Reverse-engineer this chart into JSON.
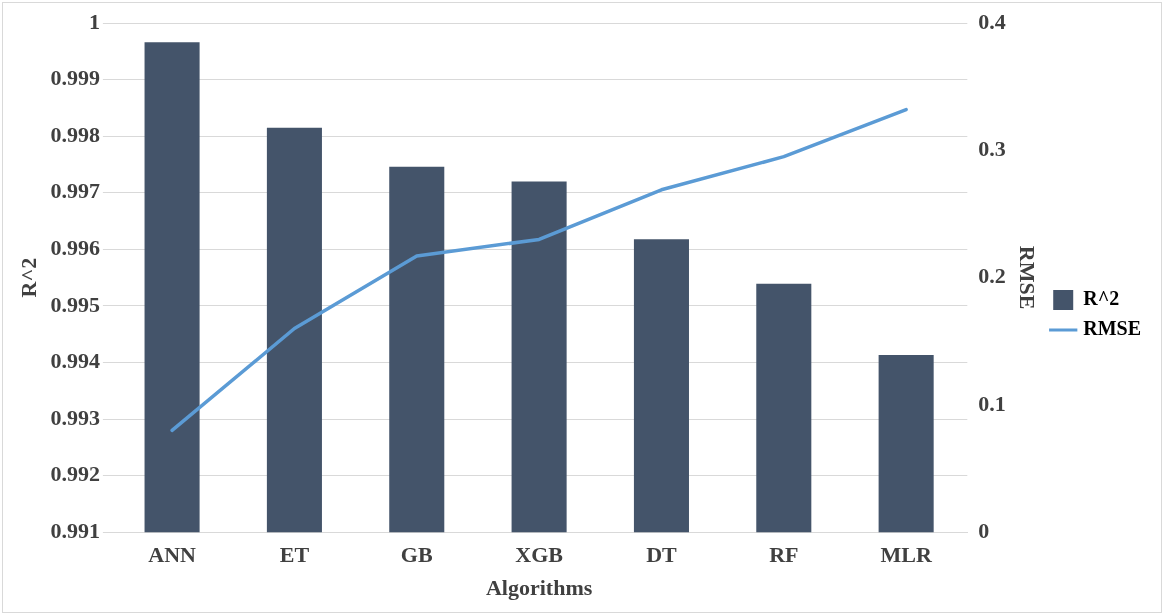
{
  "chart_data": {
    "type": "bar",
    "xlabel": "Algorithms",
    "ylabel": "R^2",
    "y2label": "RMSE",
    "categories": [
      "ANN",
      "ET",
      "GB",
      "XGB",
      "DT",
      "RF",
      "MLR"
    ],
    "series": [
      {
        "name": "R^2",
        "color": "#44546a",
        "values": [
          0.99966,
          0.99815,
          0.99746,
          0.9972,
          0.99618,
          0.99539,
          0.99413
        ]
      },
      {
        "name": "RMSE",
        "type": "line",
        "axis": "y2",
        "color": "#5b9bd5",
        "values": [
          0.08,
          0.16,
          0.217,
          0.23,
          0.269,
          0.295,
          0.332
        ]
      }
    ],
    "ylim": [
      0.991,
      1
    ],
    "yticks": [
      0.991,
      0.992,
      0.993,
      0.994,
      0.995,
      0.996,
      0.997,
      0.998,
      0.999,
      1
    ],
    "y2lim": [
      0,
      0.4
    ],
    "y2ticks": [
      0,
      0.1,
      0.2,
      0.3,
      0.4
    ],
    "grid": "y",
    "legend": "right",
    "marker": "none"
  }
}
